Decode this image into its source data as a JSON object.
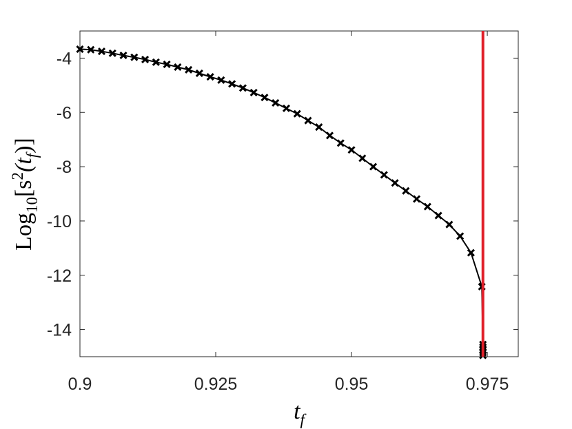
{
  "chart_data": {
    "type": "line",
    "xlabel": [
      "t",
      "f"
    ],
    "ylabel": [
      "Log",
      "10",
      "[s",
      "2",
      "(t",
      "f",
      ")]"
    ],
    "xlim": [
      0.9,
      0.9807
    ],
    "ylim": [
      -15,
      -3
    ],
    "xticks": [
      0.9,
      0.925,
      0.95,
      0.975
    ],
    "yticks": [
      -14,
      -12,
      -10,
      -8,
      -6,
      -4
    ],
    "series": [
      {
        "color": "#000000",
        "marker": "x",
        "x": [
          0.9,
          0.902,
          0.904,
          0.906,
          0.908,
          0.91,
          0.912,
          0.914,
          0.916,
          0.918,
          0.92,
          0.922,
          0.924,
          0.926,
          0.928,
          0.93,
          0.932,
          0.934,
          0.936,
          0.938,
          0.94,
          0.942,
          0.944,
          0.946,
          0.948,
          0.95,
          0.952,
          0.954,
          0.956,
          0.958,
          0.96,
          0.962,
          0.964,
          0.966,
          0.968,
          0.97,
          0.972,
          0.974,
          0.9742,
          0.9742,
          0.9742,
          0.9742,
          0.9742
        ],
        "values": [
          -3.67,
          -3.69,
          -3.75,
          -3.82,
          -3.9,
          -3.97,
          -4.05,
          -4.15,
          -4.23,
          -4.33,
          -4.43,
          -4.56,
          -4.69,
          -4.81,
          -4.95,
          -5.1,
          -5.27,
          -5.45,
          -5.65,
          -5.85,
          -6.05,
          -6.3,
          -6.54,
          -6.85,
          -7.13,
          -7.38,
          -7.69,
          -8.0,
          -8.3,
          -8.6,
          -8.89,
          -9.19,
          -9.47,
          -9.8,
          -10.13,
          -10.56,
          -11.17,
          -12.42,
          -14.55,
          -14.65,
          -14.75,
          -14.85,
          -14.95
        ]
      }
    ],
    "vline": {
      "x": 0.9742,
      "color": "#e0202a"
    },
    "grid": false
  }
}
